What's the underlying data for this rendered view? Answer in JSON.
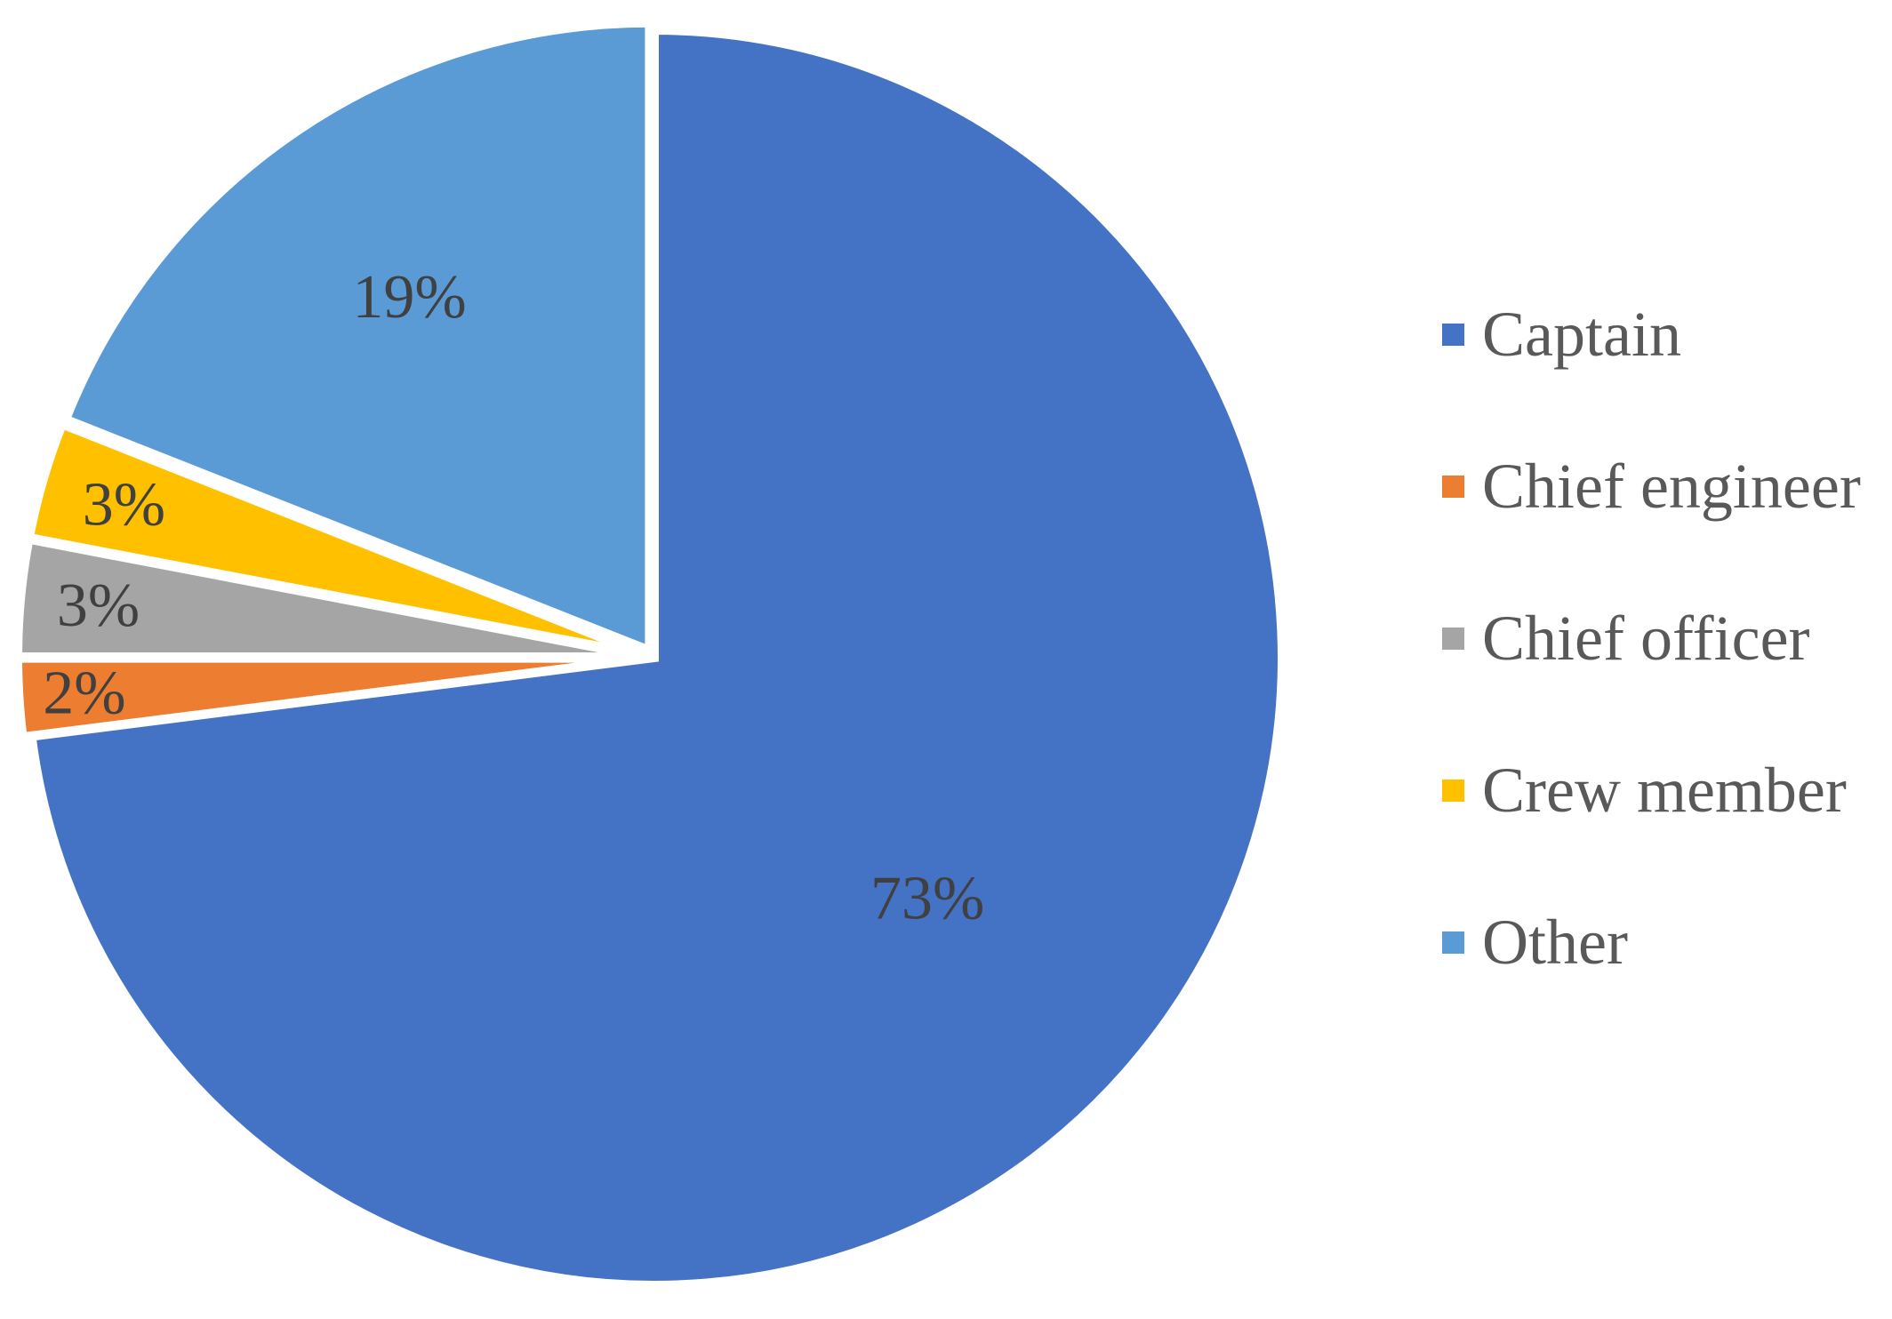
{
  "chart_data": {
    "type": "pie",
    "title": "",
    "start_angle_deg": 0,
    "direction": "clockwise",
    "legend_position": "right",
    "slices": [
      {
        "name": "Captain",
        "value": 73,
        "label": "73%",
        "color": "#4472C4",
        "exploded": false
      },
      {
        "name": "Chief engineer",
        "value": 2,
        "label": "2%",
        "color": "#ED7D31",
        "exploded": true
      },
      {
        "name": "Chief officer",
        "value": 3,
        "label": "3%",
        "color": "#A5A5A5",
        "exploded": true
      },
      {
        "name": "Crew member",
        "value": 3,
        "label": "3%",
        "color": "#FFC000",
        "exploded": true
      },
      {
        "name": "Other",
        "value": 19,
        "label": "19%",
        "color": "#5B9BD5",
        "exploded": true
      }
    ]
  }
}
